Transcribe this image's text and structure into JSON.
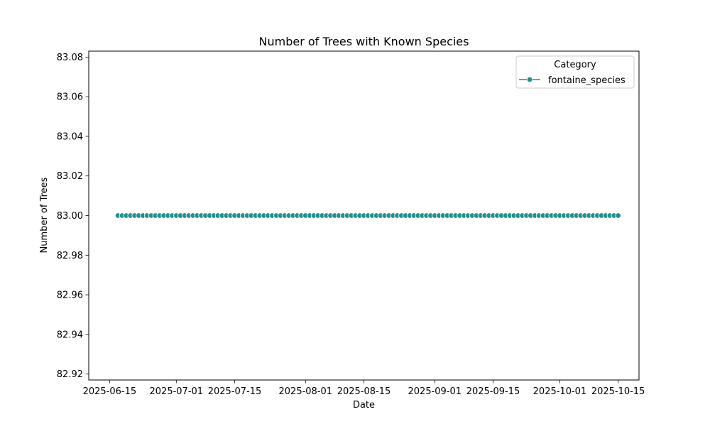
{
  "chart_data": {
    "type": "line",
    "title": "Number of Trees with Known Species",
    "xlabel": "Date",
    "ylabel": "Number of Trees",
    "x_ticks": [
      "2025-06-15",
      "2025-07-01",
      "2025-07-15",
      "2025-08-01",
      "2025-08-15",
      "2025-09-01",
      "2025-09-15",
      "2025-10-01",
      "2025-10-15"
    ],
    "y_ticks": [
      "82.92",
      "82.94",
      "82.96",
      "82.98",
      "83.00",
      "83.02",
      "83.04",
      "83.06",
      "83.08"
    ],
    "xlim": [
      "2025-06-10",
      "2025-10-20"
    ],
    "ylim": [
      82.917,
      83.083
    ],
    "x_range": [
      "2025-06-17",
      "2025-10-15"
    ],
    "y_value": 83.0,
    "marker": "circle",
    "grid": false,
    "legend": {
      "title": "Category",
      "position": "top-right",
      "entries": [
        "fontaine_species"
      ]
    },
    "series": [
      {
        "name": "fontaine_species",
        "color": "#21918c",
        "x_start": "2025-06-17",
        "x_end": "2025-10-15",
        "frequency": "daily",
        "value": 83.0
      }
    ]
  }
}
